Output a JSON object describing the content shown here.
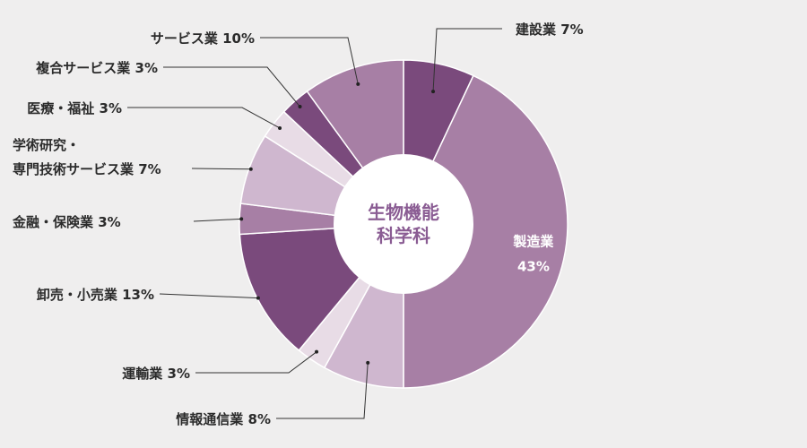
{
  "chart_data": {
    "type": "pie",
    "title": "生物機能科学科",
    "slices": [
      {
        "name": "建設業",
        "value": 7,
        "label": "建設業 7%",
        "color": "#7a4a7c"
      },
      {
        "name": "製造業",
        "value": 43,
        "label": "製造業",
        "pct_label": "43%",
        "color": "#a77fa5"
      },
      {
        "name": "情報通信業",
        "value": 8,
        "label": "情報通信業 8%",
        "color": "#cfb7cf"
      },
      {
        "name": "運輸業",
        "value": 3,
        "label": "運輸業 3%",
        "color": "#e8dce6"
      },
      {
        "name": "卸売・小売業",
        "value": 13,
        "label": "卸売・小売業 13%",
        "color": "#7a4a7c"
      },
      {
        "name": "金融・保険業",
        "value": 3,
        "label": "金融・保険業 3%",
        "color": "#a77fa5"
      },
      {
        "name": "学術研究・専門技術サービス業",
        "value": 7,
        "label_lines": [
          "学術研究・",
          "専門技術サービス業 7%"
        ],
        "color": "#cfb7cf"
      },
      {
        "name": "医療・福祉",
        "value": 3,
        "label": "医療・福祉 3%",
        "color": "#e8dce6"
      },
      {
        "name": "複合サービス業",
        "value": 3,
        "label": "複合サービス業 3%",
        "color": "#7a4a7c"
      },
      {
        "name": "サービス業",
        "value": 10,
        "label": "サービス業 10%",
        "color": "#a77fa5"
      }
    ],
    "legend": "none",
    "start_angle_deg": 0,
    "direction": "clockwise",
    "donut": true
  }
}
